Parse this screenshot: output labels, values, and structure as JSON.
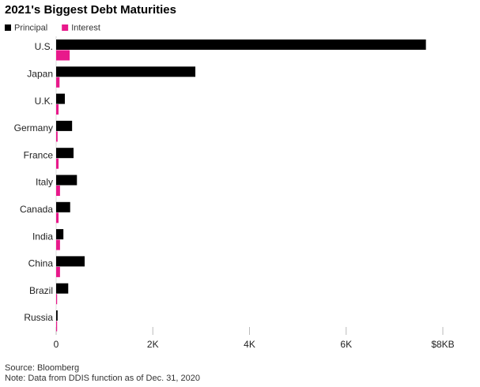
{
  "chart_data": {
    "type": "hbar",
    "title": "2021's Biggest Debt Maturities",
    "categories": [
      "U.S.",
      "Japan",
      "U.K.",
      "Germany",
      "France",
      "Italy",
      "Canada",
      "India",
      "China",
      "Brazil",
      "Russia"
    ],
    "series": [
      {
        "name": "Principal",
        "color": "#000000",
        "values": [
          7650,
          2880,
          180,
          330,
          360,
          430,
          290,
          150,
          590,
          250,
          30
        ]
      },
      {
        "name": "Interest",
        "color": "#e8198b",
        "values": [
          280,
          70,
          50,
          30,
          50,
          80,
          50,
          80,
          80,
          20,
          20
        ]
      }
    ],
    "xlim": [
      0,
      8000
    ],
    "xticks": [
      0,
      {
        "value": 2000,
        "label": "2K"
      },
      {
        "value": 4000,
        "label": "4K"
      },
      {
        "value": 6000,
        "label": "6K"
      },
      {
        "value": 8000,
        "label": "$8KB"
      }
    ],
    "source": "Source: Bloomberg",
    "note": "Note: Data from DDIS function as of Dec. 31, 2020"
  }
}
